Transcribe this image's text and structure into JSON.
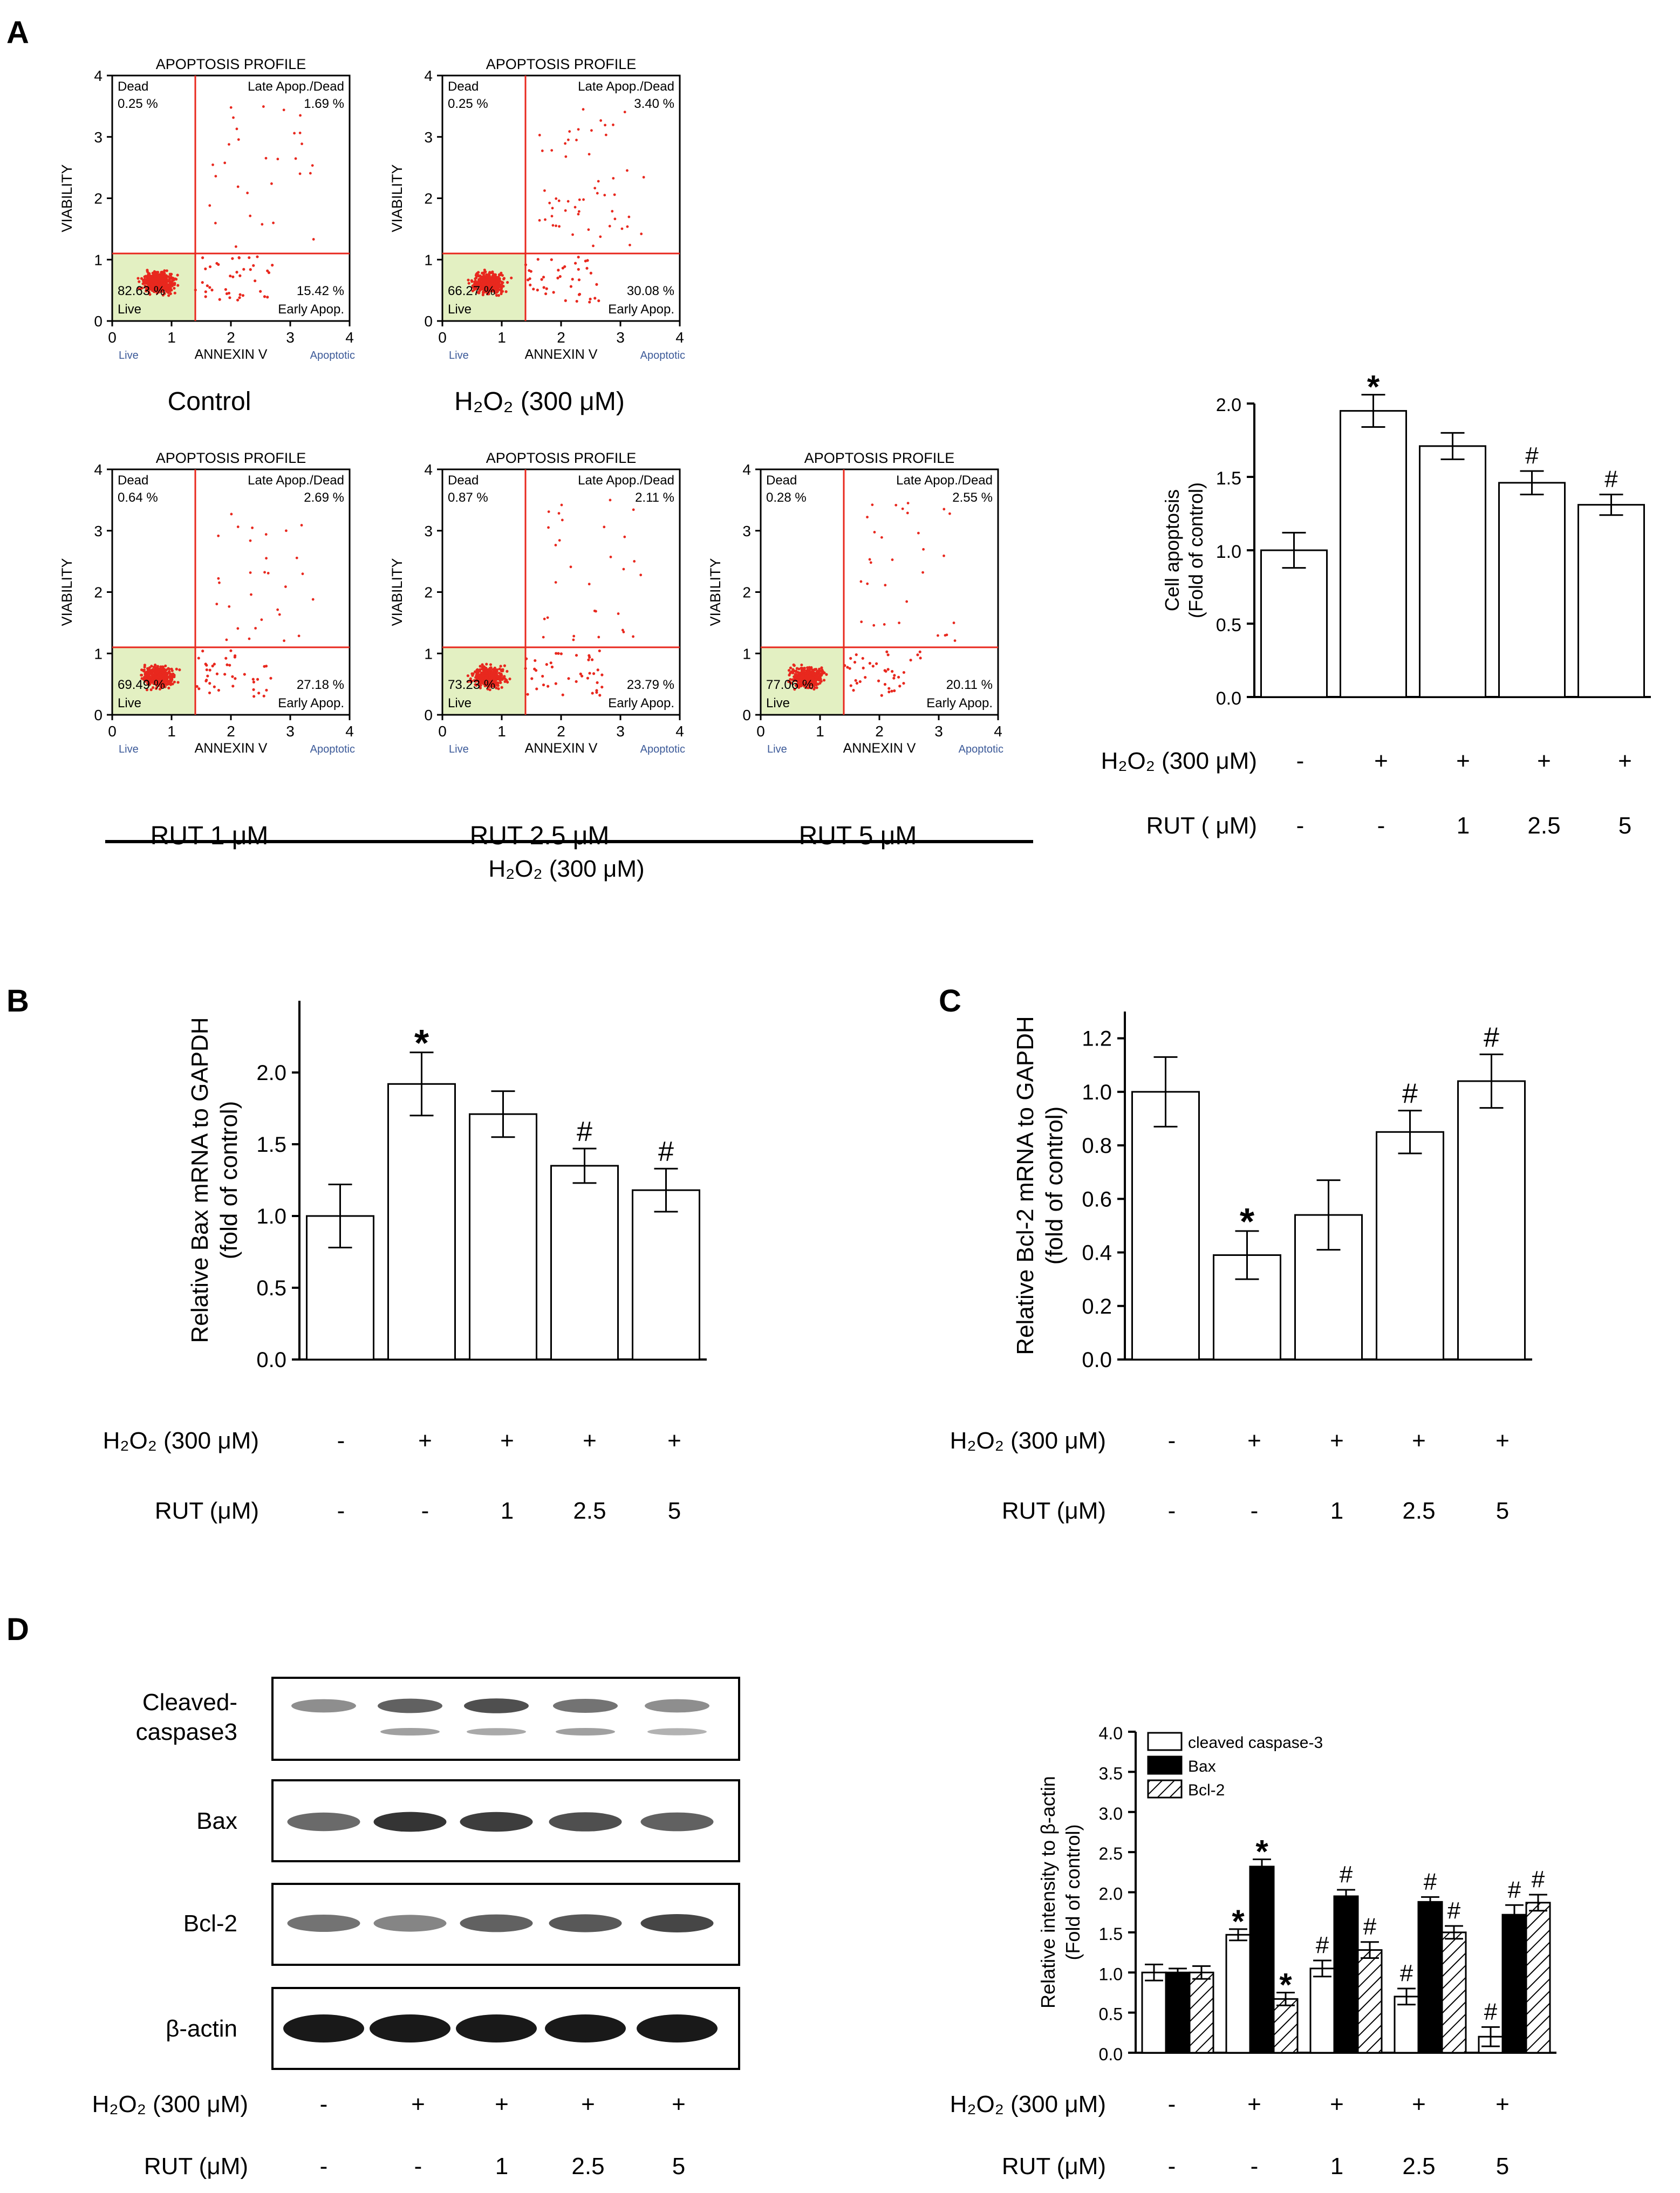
{
  "panel_labels": [
    "A",
    "B",
    "C",
    "D"
  ],
  "flow": {
    "title": "APOPTOSIS PROFILE",
    "y_axis_label": "VIABILITY",
    "x_axis_label": "ANNEXIN V",
    "x_left_tag": "Live",
    "x_right_tag": "Apoptotic",
    "ticks": [
      "0",
      "1",
      "2",
      "3",
      "4"
    ],
    "quadrant_names": {
      "dead": "Dead",
      "late": "Late Apop./Dead",
      "live": "Live",
      "early": "Early Apop."
    },
    "h2o2_bracket_label": "H₂O₂  (300 μM)",
    "plots": [
      {
        "caption": "Control",
        "dead": "0.25 %",
        "late": "1.69 %",
        "live": "82.63 %",
        "early": "15.42 %"
      },
      {
        "caption": "H₂O₂ (300 μM)",
        "dead": "0.25 %",
        "late": "3.40 %",
        "live": "66.27 %",
        "early": "30.08 %"
      },
      {
        "caption": "RUT  1 μM",
        "dead": "0.64 %",
        "late": "2.69 %",
        "live": "69.49 %",
        "early": "27.18 %"
      },
      {
        "caption": "RUT  2.5 μM",
        "dead": "0.87 %",
        "late": "2.11 %",
        "live": "73.23 %",
        "early": "23.79 %"
      },
      {
        "caption": "RUT  5 μM",
        "dead": "0.28 %",
        "late": "2.55 %",
        "live": "77.06 %",
        "early": "20.11 %"
      }
    ]
  },
  "treatments": {
    "h2o2_label": "H₂O₂ (300 μM)",
    "rut_label_a": "RUT  ( μM)",
    "rut_label": "RUT  (μM)",
    "h2o2": [
      "-",
      "+",
      "+",
      "+",
      "+"
    ],
    "rut": [
      "-",
      "-",
      "1",
      "2.5",
      "5"
    ]
  },
  "blot": {
    "labels": [
      "Cleaved-",
      "caspase3",
      "Bax",
      "Bcl-2",
      "β-actin"
    ]
  },
  "chart_data": [
    {
      "panel": "A",
      "type": "bar",
      "categories": [
        "1",
        "2",
        "3",
        "4",
        "5"
      ],
      "values": [
        1.0,
        1.95,
        1.71,
        1.46,
        1.31
      ],
      "errors": [
        0.12,
        0.11,
        0.09,
        0.08,
        0.07
      ],
      "annotations": [
        "",
        "*",
        "",
        "#",
        "#"
      ],
      "ylabel_lines": [
        "Cell apoptosis",
        "(Fold of control)"
      ],
      "ylim": [
        0,
        2.0
      ],
      "yticks": [
        "0.0",
        "0.5",
        "1.0",
        "1.5",
        "2.0"
      ]
    },
    {
      "panel": "B",
      "type": "bar",
      "categories": [
        "1",
        "2",
        "3",
        "4",
        "5"
      ],
      "values": [
        1.0,
        1.92,
        1.71,
        1.35,
        1.18
      ],
      "errors": [
        0.22,
        0.22,
        0.16,
        0.12,
        0.15
      ],
      "annotations": [
        "",
        "*",
        "",
        "#",
        "#"
      ],
      "ylabel_lines": [
        "Relative Bax mRNA to GAPDH",
        "(fold of control)"
      ],
      "ylim": [
        0,
        2.5
      ],
      "yticks": [
        "0.0",
        "0.5",
        "1.0",
        "1.5",
        "2.0"
      ]
    },
    {
      "panel": "C",
      "type": "bar",
      "categories": [
        "1",
        "2",
        "3",
        "4",
        "5"
      ],
      "values": [
        1.0,
        0.39,
        0.54,
        0.85,
        1.04
      ],
      "errors": [
        0.13,
        0.09,
        0.13,
        0.08,
        0.1
      ],
      "annotations": [
        "",
        "*",
        "",
        "#",
        "#"
      ],
      "ylabel_lines": [
        "Relative Bcl-2 mRNA to GAPDH",
        "(fold of  control)"
      ],
      "ylim": [
        0,
        1.3
      ],
      "yticks": [
        "0.0",
        "0.2",
        "0.4",
        "0.6",
        "0.8",
        "1.0",
        "1.2"
      ]
    },
    {
      "panel": "D",
      "type": "bar",
      "categories": [
        "1",
        "2",
        "3",
        "4",
        "5"
      ],
      "series": [
        {
          "name": "cleaved caspase-3",
          "values": [
            1.0,
            1.47,
            1.05,
            0.7,
            0.2
          ],
          "errors": [
            0.1,
            0.07,
            0.1,
            0.1,
            0.12
          ],
          "annotations": [
            "",
            "*",
            "#",
            "#",
            "#"
          ],
          "color": "#ffffff"
        },
        {
          "name": "Bax",
          "values": [
            1.0,
            2.32,
            1.95,
            1.88,
            1.72
          ],
          "errors": [
            0.05,
            0.09,
            0.08,
            0.06,
            0.12
          ],
          "annotations": [
            "",
            "*",
            "#",
            "#",
            "#"
          ],
          "color": "#000000"
        },
        {
          "name": "Bcl-2",
          "values": [
            1.0,
            0.67,
            1.28,
            1.5,
            1.87
          ],
          "errors": [
            0.08,
            0.08,
            0.1,
            0.08,
            0.1
          ],
          "annotations": [
            "",
            "*",
            "#",
            "#",
            "#"
          ],
          "color": "hatched"
        }
      ],
      "ylabel_lines": [
        "Relative intensity to β-actin",
        "(Fold of control)"
      ],
      "ylim": [
        0,
        4.0
      ],
      "yticks": [
        "0.0",
        "0.5",
        "1.0",
        "1.5",
        "2.0",
        "2.5",
        "3.0",
        "3.5",
        "4.0"
      ]
    }
  ]
}
